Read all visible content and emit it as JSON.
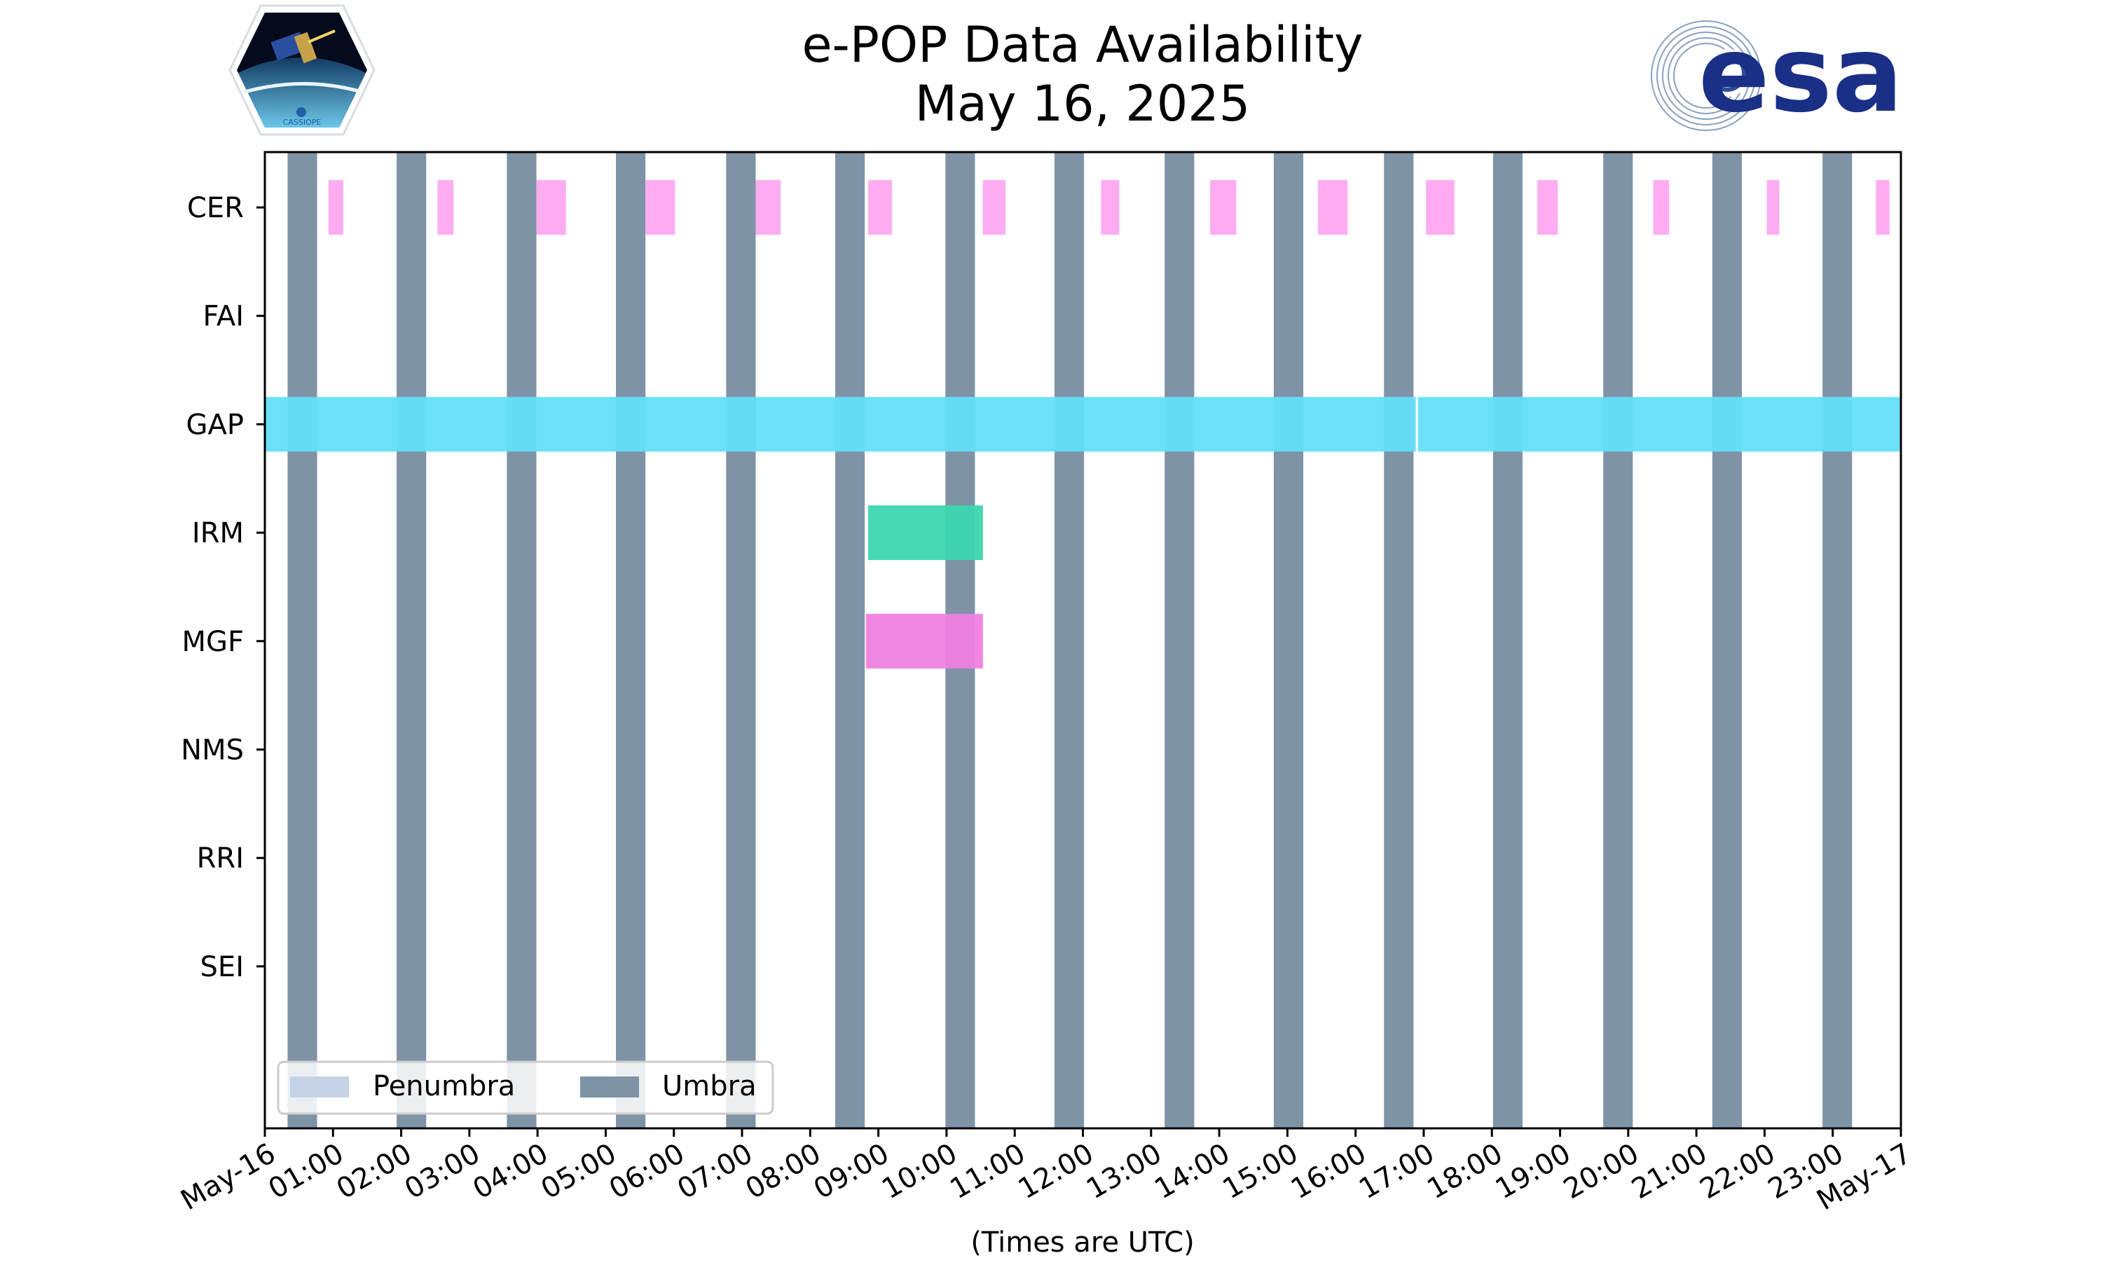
{
  "chart_data": {
    "type": "timeline",
    "title": "e-POP Data Availability",
    "subtitle": "May 16, 2025",
    "xlabel": "(Times are UTC)",
    "logos": {
      "left": "CASSIOPE",
      "right": "esa"
    },
    "x_range_hours": [
      0,
      24
    ],
    "x_tick_labels": [
      "May-16",
      "01:00",
      "02:00",
      "03:00",
      "04:00",
      "05:00",
      "06:00",
      "07:00",
      "08:00",
      "09:00",
      "10:00",
      "11:00",
      "12:00",
      "13:00",
      "14:00",
      "15:00",
      "16:00",
      "17:00",
      "18:00",
      "19:00",
      "20:00",
      "21:00",
      "22:00",
      "23:00",
      "May-17"
    ],
    "y_categories": [
      "CER",
      "FAI",
      "GAP",
      "IRM",
      "MGF",
      "NMS",
      "RRI",
      "SEI"
    ],
    "legend": {
      "location": "lower-left",
      "entries": [
        {
          "label": "Penumbra",
          "color": "#c6d3e6"
        },
        {
          "label": "Umbra",
          "color": "#7f93a6"
        }
      ]
    },
    "umbra_color": "#7f93a6",
    "umbra_intervals": [
      [
        "00:20",
        "00:46"
      ],
      [
        "01:56",
        "02:22"
      ],
      [
        "03:33",
        "03:59"
      ],
      [
        "05:09",
        "05:35"
      ],
      [
        "06:46",
        "07:12"
      ],
      [
        "08:22",
        "08:48"
      ],
      [
        "09:59",
        "10:25"
      ],
      [
        "11:35",
        "12:01"
      ],
      [
        "13:12",
        "13:38"
      ],
      [
        "14:48",
        "15:14"
      ],
      [
        "16:25",
        "16:51"
      ],
      [
        "18:01",
        "18:27"
      ],
      [
        "19:38",
        "20:04"
      ],
      [
        "21:14",
        "21:40"
      ],
      [
        "22:51",
        "23:17"
      ]
    ],
    "series": [
      {
        "name": "CER",
        "color": "#ffa8f0",
        "intervals": [
          [
            "00:56",
            "01:09"
          ],
          [
            "02:32",
            "02:46"
          ],
          [
            "03:59",
            "04:25"
          ],
          [
            "05:35",
            "06:01"
          ],
          [
            "07:12",
            "07:34"
          ],
          [
            "08:51",
            "09:12"
          ],
          [
            "10:32",
            "10:52"
          ],
          [
            "12:16",
            "12:32"
          ],
          [
            "13:52",
            "14:15"
          ],
          [
            "15:27",
            "15:53"
          ],
          [
            "17:02",
            "17:27"
          ],
          [
            "18:40",
            "18:58"
          ],
          [
            "20:22",
            "20:36"
          ],
          [
            "22:02",
            "22:13"
          ],
          [
            "23:38",
            "23:50"
          ]
        ]
      },
      {
        "name": "FAI",
        "color": "#000000",
        "intervals": []
      },
      {
        "name": "GAP",
        "color": "#63dff8",
        "intervals": [
          [
            "00:00",
            "16:53"
          ],
          [
            "16:55",
            "24:00"
          ]
        ]
      },
      {
        "name": "IRM",
        "color": "#3dd6b0",
        "intervals": [
          [
            "08:51",
            "10:32"
          ]
        ]
      },
      {
        "name": "MGF",
        "color": "#f07ee0",
        "intervals": [
          [
            "08:49",
            "10:32"
          ]
        ]
      },
      {
        "name": "NMS",
        "color": "#000000",
        "intervals": []
      },
      {
        "name": "RRI",
        "color": "#000000",
        "intervals": []
      },
      {
        "name": "SEI",
        "color": "#000000",
        "intervals": []
      }
    ]
  }
}
